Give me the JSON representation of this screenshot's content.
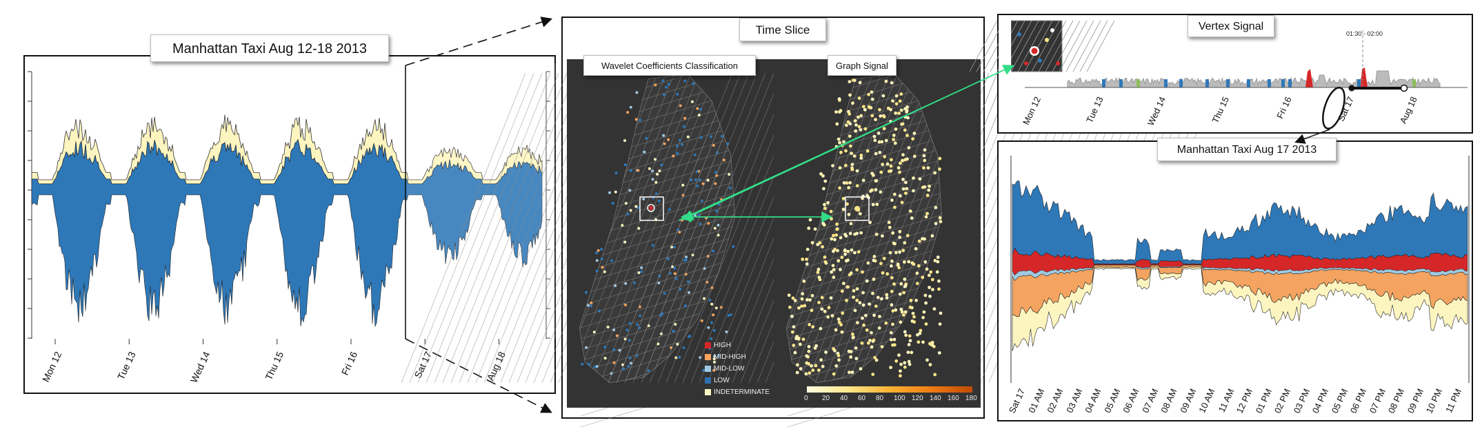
{
  "overview": {
    "title": "Manhattan Taxi Aug 12-18 2013",
    "ticks": [
      "Mon 12",
      "Tue 13",
      "Wed 14",
      "Thu 15",
      "Fri 16",
      "Sat 17",
      "Aug 18"
    ]
  },
  "time_slice": {
    "title": "Time Slice",
    "left_title": "Wavelet Coefficients Classification",
    "right_title": "Graph Signal",
    "legend": [
      {
        "label": "HIGH",
        "color": "#d62728"
      },
      {
        "label": "MID-HIGH",
        "color": "#f4a460"
      },
      {
        "label": "MID-LOW",
        "color": "#9ecae1"
      },
      {
        "label": "LOW",
        "color": "#2e6fb0"
      },
      {
        "label": "INDETERMINATE",
        "color": "#fdf5c0"
      }
    ],
    "colorbar_ticks": [
      "0",
      "20",
      "40",
      "60",
      "80",
      "100",
      "120",
      "140",
      "160",
      "180"
    ]
  },
  "vertex_signal": {
    "title": "Vertex Signal",
    "time_label": "01:30 - 02:00",
    "ticks": [
      "Mon 12",
      "Tue 13",
      "Wed 14",
      "Thu 15",
      "Fri 16",
      "Sat 17",
      "Aug 18"
    ]
  },
  "detail": {
    "title": "Manhattan Taxi Aug 17 2013",
    "ticks": [
      "Sat 17",
      "01 AM",
      "02 AM",
      "03 AM",
      "04 AM",
      "05 AM",
      "06 AM",
      "07 AM",
      "08 AM",
      "09 AM",
      "10 AM",
      "11 AM",
      "12 PM",
      "01 PM",
      "02 PM",
      "03 PM",
      "04 PM",
      "05 PM",
      "06 PM",
      "07 PM",
      "08 PM",
      "09 PM",
      "10 PM",
      "11 PM"
    ]
  },
  "colors": {
    "low": "#2e78b8",
    "mid_low": "#9ecae1",
    "mid_high": "#f4a460",
    "high": "#d62728",
    "indeterminate": "#fdf5c0",
    "arrow_green": "#33dd88"
  }
}
